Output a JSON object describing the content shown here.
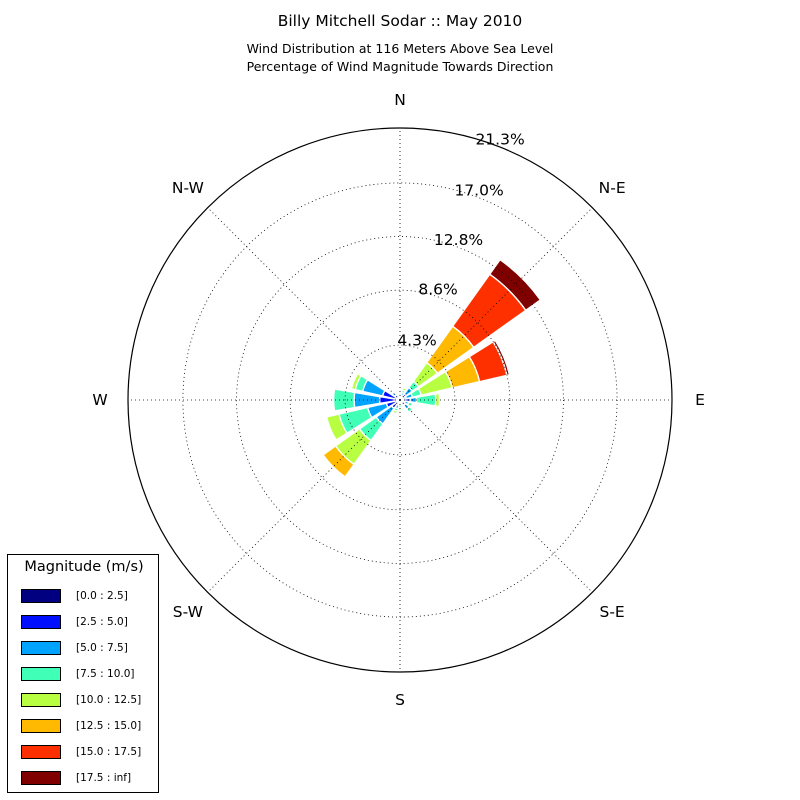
{
  "chart_data": {
    "type": "windrose",
    "title": "Billy Mitchell Sodar :: May 2010",
    "subtitle_lines": [
      "Wind Distribution at 116 Meters Above Sea Level",
      "Percentage of Wind Magnitude Towards Direction"
    ],
    "direction_labels": [
      "N",
      "N-E",
      "E",
      "S-E",
      "S",
      "S-W",
      "W",
      "N-W"
    ],
    "radial_tick_labels": [
      "4.3%",
      "8.6%",
      "12.8%",
      "17.0%",
      "21.3%"
    ],
    "radial_ticks": [
      4.3,
      8.6,
      12.8,
      17.0,
      21.3
    ],
    "rmax": 21.3,
    "grid": true,
    "legend_title": "Magnitude (m/s)",
    "legend_position": "lower-left",
    "bins": [
      {
        "label": "[0.0 : 2.5]",
        "color": "#000080"
      },
      {
        "label": "[2.5 : 5.0]",
        "color": "#0010ff"
      },
      {
        "label": "[5.0 : 7.5]",
        "color": "#00a4ff"
      },
      {
        "label": "[7.5 : 10.0]",
        "color": "#40ffb7"
      },
      {
        "label": "[10.0 : 12.5]",
        "color": "#b7ff40"
      },
      {
        "label": "[12.5 : 15.0]",
        "color": "#ffb900"
      },
      {
        "label": "[15.0 : 17.5]",
        "color": "#ff3000"
      },
      {
        "label": "[17.5 : inf]",
        "color": "#800000"
      }
    ],
    "directions_deg": [
      0,
      22.5,
      45,
      67.5,
      90,
      112.5,
      135,
      157.5,
      180,
      202.5,
      225,
      247.5,
      270,
      292.5,
      315,
      337.5
    ],
    "cumulative_percent": [
      [
        0.1,
        0.2,
        0.3,
        0.4,
        0.4,
        0.4,
        0.4,
        0.4
      ],
      [
        0.2,
        0.4,
        0.6,
        0.8,
        1.0,
        1.0,
        1.0,
        1.0
      ],
      [
        0.3,
        0.6,
        1.2,
        1.8,
        3.6,
        7.1,
        12.1,
        13.5
      ],
      [
        0.2,
        0.5,
        1.0,
        1.7,
        4.2,
        6.4,
        8.6,
        8.8
      ],
      [
        0.2,
        0.8,
        1.3,
        2.8,
        3.1,
        3.1,
        3.1,
        3.1
      ],
      [
        0.1,
        0.4,
        0.7,
        1.0,
        1.0,
        1.0,
        1.0,
        1.0
      ],
      [
        0.1,
        0.5,
        0.9,
        1.2,
        1.2,
        1.2,
        1.2,
        1.2
      ],
      [
        0.1,
        0.2,
        0.3,
        0.4,
        0.4,
        0.4,
        0.4,
        0.4
      ],
      [
        0.1,
        0.2,
        0.3,
        0.6,
        0.8,
        0.8,
        0.8,
        0.8
      ],
      [
        0.2,
        0.4,
        0.7,
        0.9,
        1.1,
        1.1,
        1.1,
        1.1
      ],
      [
        0.2,
        0.8,
        2.3,
        3.9,
        6.2,
        7.4,
        7.4,
        7.4
      ],
      [
        0.2,
        1.1,
        2.6,
        4.9,
        5.9,
        5.9,
        5.9,
        5.9
      ],
      [
        0.2,
        1.6,
        3.6,
        5.2,
        5.2,
        5.2,
        5.2,
        5.2
      ],
      [
        0.2,
        1.4,
        3.0,
        3.6,
        3.9,
        3.9,
        3.9,
        3.9
      ],
      [
        0.1,
        0.5,
        0.7,
        0.7,
        0.7,
        0.7,
        0.7,
        0.7
      ],
      [
        0.1,
        0.2,
        0.3,
        0.3,
        0.3,
        0.3,
        0.3,
        0.3
      ]
    ]
  }
}
